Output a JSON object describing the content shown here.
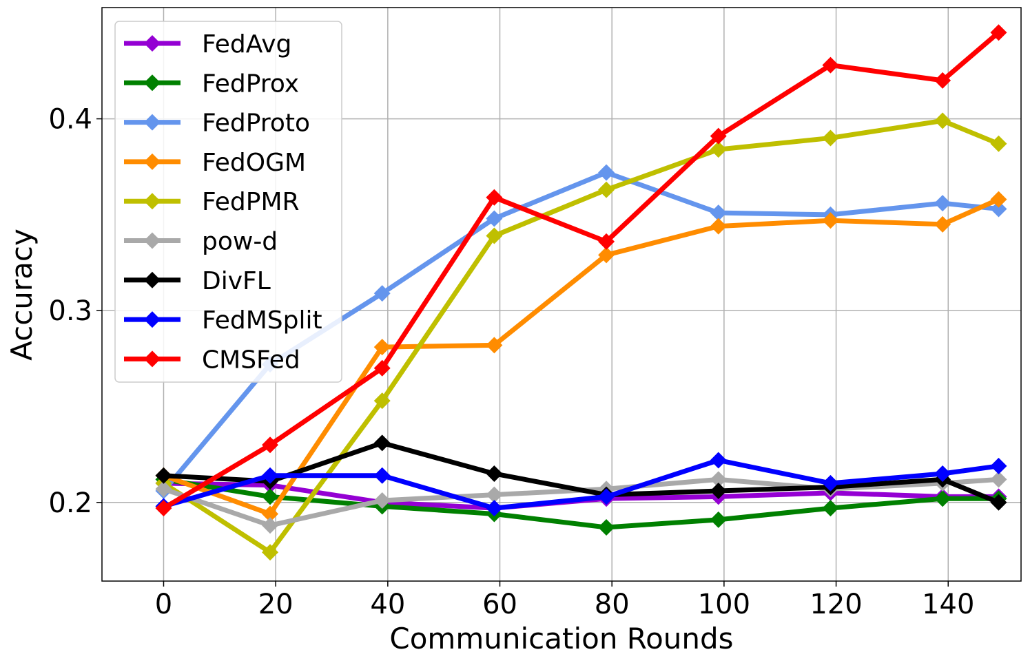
{
  "chart_data": {
    "type": "line",
    "title": "",
    "xlabel": "Communication Rounds",
    "ylabel": "Accuracy",
    "xlim": [
      -11,
      153
    ],
    "ylim": [
      0.159,
      0.458
    ],
    "xticks": [
      0,
      20,
      40,
      60,
      80,
      100,
      120,
      140
    ],
    "xtick_labels": [
      "0",
      "20",
      "40",
      "60",
      "80",
      "100",
      "120",
      "140"
    ],
    "yticks": [
      0.2,
      0.3,
      0.4
    ],
    "ytick_labels": [
      "0.2",
      "0.3",
      "0.4"
    ],
    "grid": true,
    "legend_position": "upper-left",
    "x": [
      0,
      19,
      39,
      59,
      79,
      99,
      119,
      139,
      149
    ],
    "series": [
      {
        "name": "FedAvg",
        "color": "#9400d3",
        "values": [
          0.21,
          0.209,
          0.2,
          0.197,
          0.202,
          0.203,
          0.205,
          0.203,
          0.203
        ]
      },
      {
        "name": "FedProx",
        "color": "#008000",
        "values": [
          0.212,
          0.203,
          0.198,
          0.194,
          0.187,
          0.191,
          0.197,
          0.202,
          0.202
        ]
      },
      {
        "name": "FedProto",
        "color": "#6495ed",
        "values": [
          0.206,
          0.272,
          0.309,
          0.348,
          0.372,
          0.351,
          0.35,
          0.356,
          0.353
        ]
      },
      {
        "name": "FedOGM",
        "color": "#ff8c00",
        "values": [
          0.214,
          0.194,
          0.281,
          0.282,
          0.329,
          0.344,
          0.347,
          0.345,
          0.358
        ]
      },
      {
        "name": "FedPMR",
        "color": "#bfbf00",
        "values": [
          0.21,
          0.174,
          0.253,
          0.339,
          0.363,
          0.384,
          0.39,
          0.399,
          0.387
        ]
      },
      {
        "name": "pow-d",
        "color": "#a9a9a9",
        "values": [
          0.207,
          0.188,
          0.201,
          0.204,
          0.207,
          0.212,
          0.207,
          0.21,
          0.212
        ]
      },
      {
        "name": "DivFL",
        "color": "#000000",
        "values": [
          0.214,
          0.211,
          0.231,
          0.215,
          0.204,
          0.206,
          0.208,
          0.212,
          0.2
        ]
      },
      {
        "name": "FedMSplit",
        "color": "#0000ff",
        "values": [
          0.198,
          0.214,
          0.214,
          0.197,
          0.203,
          0.222,
          0.21,
          0.215,
          0.219
        ]
      },
      {
        "name": "CMSFed",
        "color": "#ff0000",
        "values": [
          0.197,
          0.23,
          0.27,
          0.359,
          0.336,
          0.391,
          0.428,
          0.42,
          0.445
        ]
      }
    ]
  }
}
